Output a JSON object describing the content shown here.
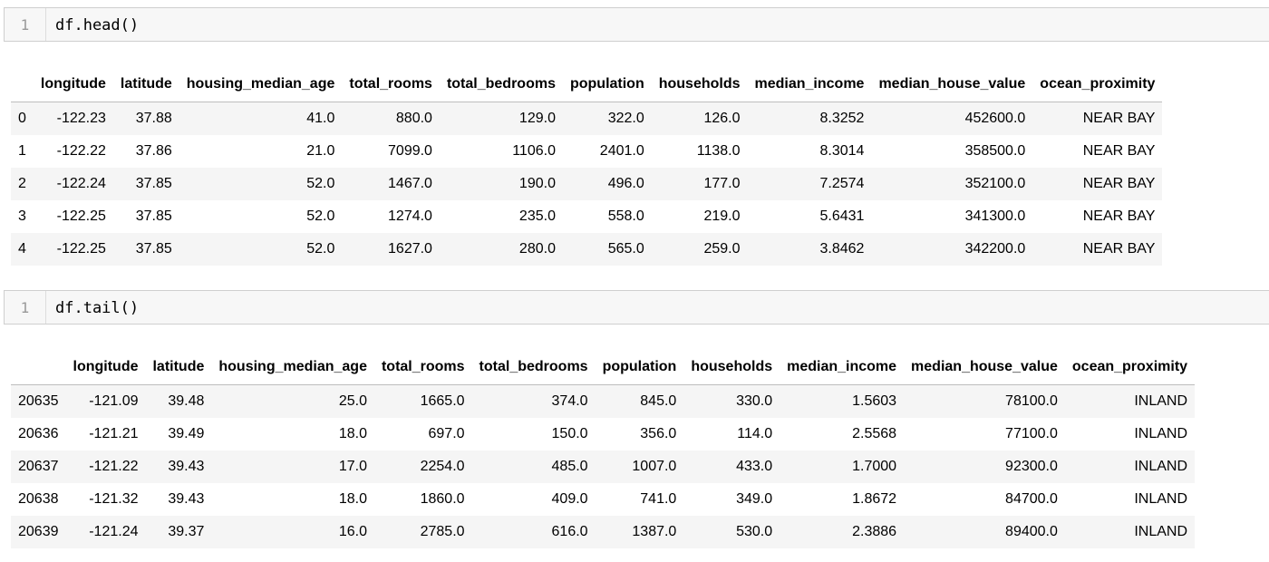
{
  "cells": [
    {
      "line_number": "1",
      "code": "df.head()",
      "columns": [
        "",
        "longitude",
        "latitude",
        "housing_median_age",
        "total_rooms",
        "total_bedrooms",
        "population",
        "households",
        "median_income",
        "median_house_value",
        "ocean_proximity"
      ],
      "rows": [
        [
          "0",
          "-122.23",
          "37.88",
          "41.0",
          "880.0",
          "129.0",
          "322.0",
          "126.0",
          "8.3252",
          "452600.0",
          "NEAR BAY"
        ],
        [
          "1",
          "-122.22",
          "37.86",
          "21.0",
          "7099.0",
          "1106.0",
          "2401.0",
          "1138.0",
          "8.3014",
          "358500.0",
          "NEAR BAY"
        ],
        [
          "2",
          "-122.24",
          "37.85",
          "52.0",
          "1467.0",
          "190.0",
          "496.0",
          "177.0",
          "7.2574",
          "352100.0",
          "NEAR BAY"
        ],
        [
          "3",
          "-122.25",
          "37.85",
          "52.0",
          "1274.0",
          "235.0",
          "558.0",
          "219.0",
          "5.6431",
          "341300.0",
          "NEAR BAY"
        ],
        [
          "4",
          "-122.25",
          "37.85",
          "52.0",
          "1627.0",
          "280.0",
          "565.0",
          "259.0",
          "3.8462",
          "342200.0",
          "NEAR BAY"
        ]
      ]
    },
    {
      "line_number": "1",
      "code": "df.tail()",
      "columns": [
        "",
        "longitude",
        "latitude",
        "housing_median_age",
        "total_rooms",
        "total_bedrooms",
        "population",
        "households",
        "median_income",
        "median_house_value",
        "ocean_proximity"
      ],
      "rows": [
        [
          "20635",
          "-121.09",
          "39.48",
          "25.0",
          "1665.0",
          "374.0",
          "845.0",
          "330.0",
          "1.5603",
          "78100.0",
          "INLAND"
        ],
        [
          "20636",
          "-121.21",
          "39.49",
          "18.0",
          "697.0",
          "150.0",
          "356.0",
          "114.0",
          "2.5568",
          "77100.0",
          "INLAND"
        ],
        [
          "20637",
          "-121.22",
          "39.43",
          "17.0",
          "2254.0",
          "485.0",
          "1007.0",
          "433.0",
          "1.7000",
          "92300.0",
          "INLAND"
        ],
        [
          "20638",
          "-121.32",
          "39.43",
          "18.0",
          "1860.0",
          "409.0",
          "741.0",
          "349.0",
          "1.8672",
          "84700.0",
          "INLAND"
        ],
        [
          "20639",
          "-121.24",
          "39.37",
          "16.0",
          "2785.0",
          "616.0",
          "1387.0",
          "530.0",
          "2.3886",
          "89400.0",
          "INLAND"
        ]
      ]
    }
  ]
}
